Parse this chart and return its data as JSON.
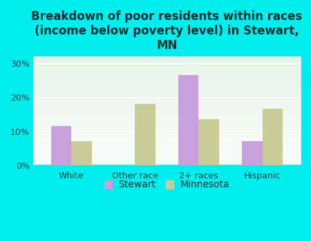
{
  "title": "Breakdown of poor residents within races\n(income below poverty level) in Stewart,\nMN",
  "categories": [
    "White",
    "Other race",
    "2+ races",
    "Hispanic"
  ],
  "stewart_values": [
    11.5,
    0,
    26.5,
    7.0
  ],
  "minnesota_values": [
    7.0,
    18.0,
    13.5,
    16.5
  ],
  "stewart_color": "#c9a0dc",
  "minnesota_color": "#c8cc96",
  "background_outer": "#00eeee",
  "background_inner_top": "#e8f4e8",
  "background_inner_bottom": "#f5faf5",
  "ylim": [
    0,
    32
  ],
  "yticks": [
    0,
    10,
    20,
    30
  ],
  "ytick_labels": [
    "0%",
    "10%",
    "20%",
    "30%"
  ],
  "bar_width": 0.32,
  "legend_labels": [
    "Stewart",
    "Minnesota"
  ],
  "title_fontsize": 12,
  "tick_fontsize": 9,
  "legend_fontsize": 10,
  "title_color": "#003333",
  "tick_color": "#004444"
}
